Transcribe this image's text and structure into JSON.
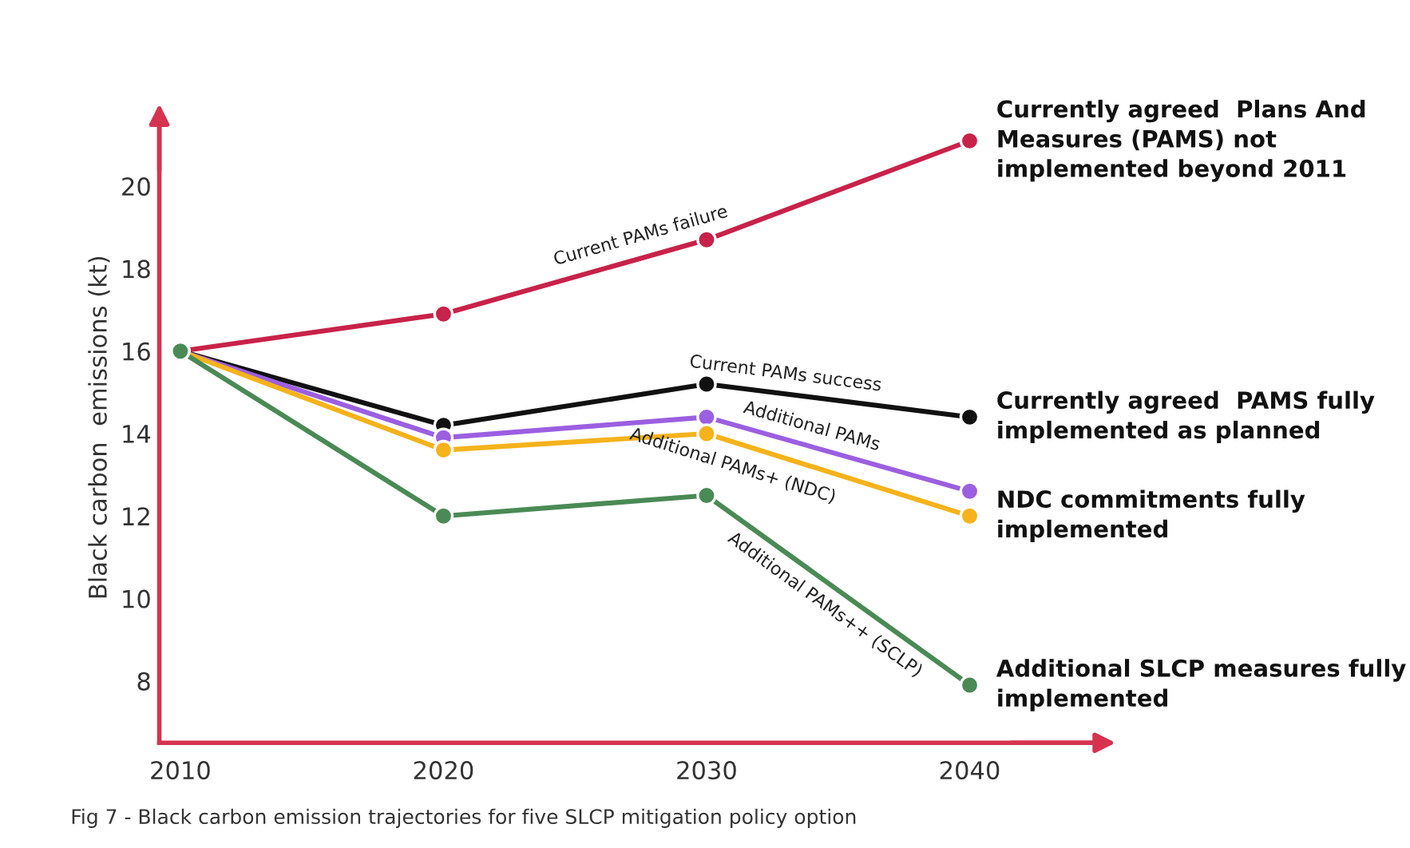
{
  "chart_data": {
    "type": "line",
    "ylabel": "Black carbon  emissions (kt)",
    "categories": [
      "2010",
      "2020",
      "2030",
      "2040"
    ],
    "ylim": [
      6.5,
      21.8
    ],
    "yticks": [
      8,
      10,
      12,
      14,
      16,
      18,
      20
    ],
    "grid": false,
    "legend": false,
    "marker": "circle",
    "line_style": "solid",
    "series": [
      {
        "name": "Current PAMs failure",
        "color": "#c8224a",
        "values": [
          16.0,
          16.9,
          18.7,
          21.1
        ]
      },
      {
        "name": "Current PAMs success",
        "color": "#111111",
        "values": [
          16.0,
          14.2,
          15.2,
          14.4
        ]
      },
      {
        "name": "Additional PAMs",
        "color": "#9b5fe0",
        "values": [
          16.0,
          13.9,
          14.4,
          12.6
        ]
      },
      {
        "name": "Additional PAMs+ (NDC)",
        "color": "#f5b21b",
        "values": [
          16.0,
          13.6,
          14.0,
          12.0
        ]
      },
      {
        "name": "Additional PAMs++ (SCLP)",
        "color": "#4a8a55",
        "values": [
          16.0,
          12.0,
          12.5,
          7.9
        ]
      }
    ],
    "annotations": [
      {
        "text": "Currently agreed  Plans And\nMeasures (PAMS) not\nimplemented beyond 2011",
        "x": "2040",
        "y": 21.1
      },
      {
        "text": "Currently agreed  PAMS fully\nimplemented as planned",
        "x": "2040",
        "y": 14.4
      },
      {
        "text": "NDC commitments fully\nimplemented",
        "x": "2040",
        "y": 12.0
      },
      {
        "text": "Additional SLCP measures fully\nimplemented",
        "x": "2040",
        "y": 7.9
      },
      "Fig 7 - Black carbon emission trajectories for five SLCP mitigation policy option"
    ]
  }
}
